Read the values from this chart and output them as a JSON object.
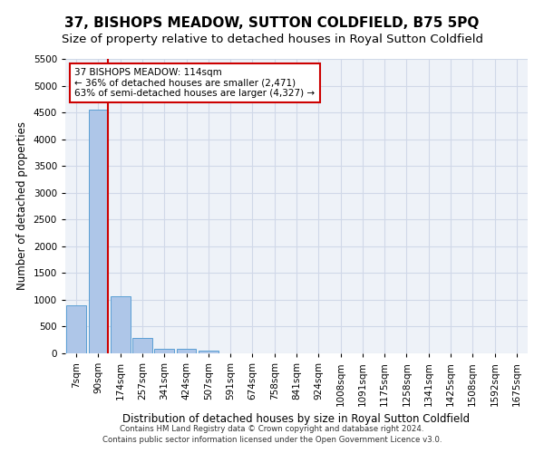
{
  "title": "37, BISHOPS MEADOW, SUTTON COLDFIELD, B75 5PQ",
  "subtitle": "Size of property relative to detached houses in Royal Sutton Coldfield",
  "xlabel": "Distribution of detached houses by size in Royal Sutton Coldfield",
  "ylabel": "Number of detached properties",
  "footnote1": "Contains HM Land Registry data © Crown copyright and database right 2024.",
  "footnote2": "Contains public sector information licensed under the Open Government Licence v3.0.",
  "bar_labels": [
    "7sqm",
    "90sqm",
    "174sqm",
    "257sqm",
    "341sqm",
    "424sqm",
    "507sqm",
    "591sqm",
    "674sqm",
    "758sqm",
    "841sqm",
    "924sqm",
    "1008sqm",
    "1091sqm",
    "1175sqm",
    "1258sqm",
    "1341sqm",
    "1425sqm",
    "1508sqm",
    "1592sqm",
    "1675sqm"
  ],
  "bar_values": [
    890,
    4560,
    1060,
    290,
    80,
    80,
    50,
    0,
    0,
    0,
    0,
    0,
    0,
    0,
    0,
    0,
    0,
    0,
    0,
    0,
    0
  ],
  "bar_color": "#aec6e8",
  "bar_edge_color": "#5a9fd4",
  "vline_color": "#cc0000",
  "annotation_text": "37 BISHOPS MEADOW: 114sqm\n← 36% of detached houses are smaller (2,471)\n63% of semi-detached houses are larger (4,327) →",
  "ylim": [
    0,
    5500
  ],
  "grid_color": "#d0d8e8",
  "bg_color": "#eef2f8",
  "title_fontsize": 11,
  "subtitle_fontsize": 9.5,
  "tick_fontsize": 7.5,
  "ylabel_fontsize": 8.5,
  "xlabel_fontsize": 8.5,
  "annot_fontsize": 7.5
}
